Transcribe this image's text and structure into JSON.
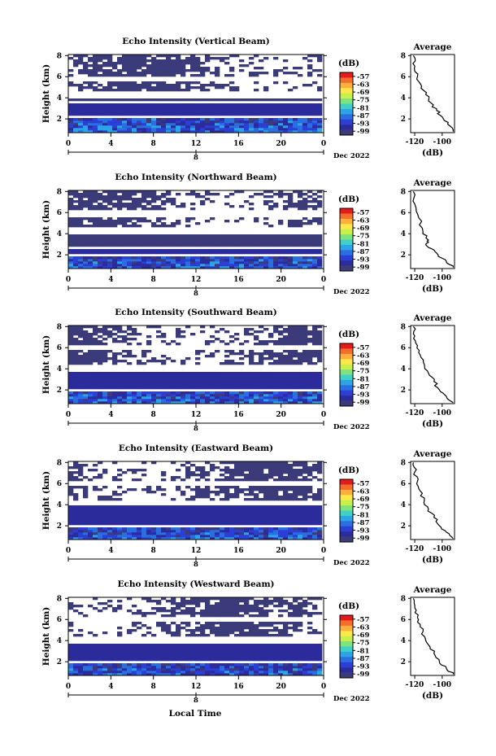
{
  "figure": {
    "xlabel": "Local Time",
    "date_label": "Dec 2022",
    "colorbar_unit": "(dB)",
    "colorbar_ticks": [
      "-57",
      "-63",
      "-69",
      "-75",
      "-81",
      "-87",
      "-93",
      "-99"
    ],
    "colorbar_colors": [
      "#e41a1c",
      "#f46d2c",
      "#fdae3d",
      "#fee74b",
      "#c8f04b",
      "#7de37a",
      "#3fd1c5",
      "#2ba5e8",
      "#2a6fe0",
      "#2b3fd6",
      "#2b2b9c",
      "#3b3b7a"
    ],
    "avg_title": "Average",
    "avg_xlabel": "(dB)",
    "avg_xticks": [
      "-120",
      "-100"
    ],
    "height_ticks": [
      "2",
      "4",
      "6",
      "8"
    ],
    "time_ticks": [
      "0",
      "4",
      "8",
      "12",
      "16",
      "20",
      "0"
    ],
    "day_tick": "8",
    "ylabel": "Height (km)"
  },
  "chart_data": [
    {
      "type": "heatmap",
      "title": "Echo Intensity (Vertical Beam)",
      "xlabel": "",
      "ylabel": "Height (km)",
      "xlim": [
        0,
        24
      ],
      "ylim": [
        0.7,
        8.1
      ],
      "colorbar": {
        "label": "(dB)",
        "range": [
          -99,
          -57
        ]
      },
      "layers": [
        {
          "from_km": 0.8,
          "to_km": 2.2,
          "intensity_dB": -90
        },
        {
          "from_km": 2.4,
          "to_km": 3.5,
          "intensity_dB": -97
        },
        {
          "from_km": 3.6,
          "to_km": 3.9,
          "intensity_dB": -98
        },
        {
          "from_km": 4.7,
          "to_km": 5.6,
          "intensity_dB": -98
        },
        {
          "from_km": 6.0,
          "to_km": 8.0,
          "intensity_dB": -99
        }
      ],
      "average_profile": {
        "title": "Average",
        "xlabel": "(dB)",
        "xlim": [
          -123,
          -91
        ],
        "ylim": [
          0.7,
          8.1
        ],
        "x": [
          -92,
          -96,
          -100,
          -104,
          -108,
          -112,
          -115,
          -118,
          -120,
          -121
        ],
        "y": [
          0.8,
          1.5,
          2.2,
          2.8,
          3.5,
          4.3,
          5.1,
          6.0,
          7.0,
          8.0
        ]
      }
    },
    {
      "type": "heatmap",
      "title": "Echo Intensity (Northward Beam)",
      "xlabel": "",
      "ylabel": "Height (km)",
      "xlim": [
        0,
        24
      ],
      "ylim": [
        0.7,
        8.1
      ],
      "colorbar": {
        "label": "(dB)",
        "range": [
          -99,
          -57
        ]
      },
      "layers": [
        {
          "from_km": 0.8,
          "to_km": 1.9,
          "intensity_dB": -91
        },
        {
          "from_km": 2.1,
          "to_km": 2.6,
          "intensity_dB": -97
        },
        {
          "from_km": 2.8,
          "to_km": 4.0,
          "intensity_dB": -98
        },
        {
          "from_km": 4.6,
          "to_km": 5.6,
          "intensity_dB": -99
        },
        {
          "from_km": 6.2,
          "to_km": 8.0,
          "intensity_dB": -99
        }
      ],
      "average_profile": {
        "title": "Average",
        "xlabel": "(dB)",
        "xlim": [
          -123,
          -91
        ],
        "ylim": [
          0.7,
          8.1
        ],
        "x": [
          -92,
          -97,
          -103,
          -108,
          -112,
          -110,
          -114,
          -117,
          -120,
          -121
        ],
        "y": [
          0.8,
          1.4,
          2.0,
          2.6,
          3.0,
          3.4,
          4.2,
          5.5,
          6.8,
          8.0
        ]
      }
    },
    {
      "type": "heatmap",
      "title": "Echo Intensity (Southward Beam)",
      "xlabel": "",
      "ylabel": "Height (km)",
      "xlim": [
        0,
        24
      ],
      "ylim": [
        0.7,
        8.1
      ],
      "colorbar": {
        "label": "(dB)",
        "range": [
          -99,
          -57
        ]
      },
      "layers": [
        {
          "from_km": 0.8,
          "to_km": 1.9,
          "intensity_dB": -91
        },
        {
          "from_km": 2.2,
          "to_km": 3.8,
          "intensity_dB": -97
        },
        {
          "from_km": 4.3,
          "to_km": 5.8,
          "intensity_dB": -99
        },
        {
          "from_km": 6.2,
          "to_km": 8.0,
          "intensity_dB": -99
        }
      ],
      "average_profile": {
        "title": "Average",
        "xlabel": "(dB)",
        "xlim": [
          -123,
          -91
        ],
        "ylim": [
          0.7,
          8.1
        ],
        "x": [
          -92,
          -97,
          -102,
          -106,
          -110,
          -113,
          -116,
          -118,
          -120,
          -121
        ],
        "y": [
          0.8,
          1.4,
          2.0,
          2.8,
          3.6,
          4.4,
          5.3,
          6.2,
          7.1,
          8.0
        ]
      }
    },
    {
      "type": "heatmap",
      "title": "Echo Intensity (Eastward Beam)",
      "xlabel": "",
      "ylabel": "Height (km)",
      "xlim": [
        0,
        24
      ],
      "ylim": [
        0.7,
        8.1
      ],
      "colorbar": {
        "label": "(dB)",
        "range": [
          -99,
          -57
        ]
      },
      "layers": [
        {
          "from_km": 0.8,
          "to_km": 1.9,
          "intensity_dB": -91
        },
        {
          "from_km": 2.2,
          "to_km": 3.9,
          "intensity_dB": -97
        },
        {
          "from_km": 4.3,
          "to_km": 5.8,
          "intensity_dB": -99
        },
        {
          "from_km": 6.2,
          "to_km": 8.0,
          "intensity_dB": -99
        }
      ],
      "average_profile": {
        "title": "Average",
        "xlabel": "(dB)",
        "xlim": [
          -123,
          -91
        ],
        "ylim": [
          0.7,
          8.1
        ],
        "x": [
          -92,
          -97,
          -102,
          -106,
          -110,
          -113,
          -116,
          -118,
          -120,
          -121
        ],
        "y": [
          0.8,
          1.4,
          2.0,
          2.8,
          3.6,
          4.4,
          5.3,
          6.2,
          7.1,
          8.0
        ]
      }
    },
    {
      "type": "heatmap",
      "title": "Echo Intensity (Westward Beam)",
      "xlabel": "Local Time",
      "ylabel": "Height (km)",
      "xlim": [
        0,
        24
      ],
      "ylim": [
        0.7,
        8.1
      ],
      "colorbar": {
        "label": "(dB)",
        "range": [
          -99,
          -57
        ]
      },
      "layers": [
        {
          "from_km": 0.8,
          "to_km": 1.9,
          "intensity_dB": -91
        },
        {
          "from_km": 2.2,
          "to_km": 3.8,
          "intensity_dB": -97
        },
        {
          "from_km": 4.3,
          "to_km": 5.8,
          "intensity_dB": -99
        },
        {
          "from_km": 6.2,
          "to_km": 8.0,
          "intensity_dB": -99
        }
      ],
      "average_profile": {
        "title": "Average",
        "xlabel": "(dB)",
        "xlim": [
          -123,
          -91
        ],
        "ylim": [
          0.7,
          8.1
        ],
        "x": [
          -92,
          -97,
          -102,
          -106,
          -110,
          -113,
          -116,
          -118,
          -120,
          -121
        ],
        "y": [
          0.8,
          1.4,
          2.0,
          2.8,
          3.6,
          4.4,
          5.3,
          6.2,
          7.1,
          8.0
        ]
      }
    }
  ]
}
